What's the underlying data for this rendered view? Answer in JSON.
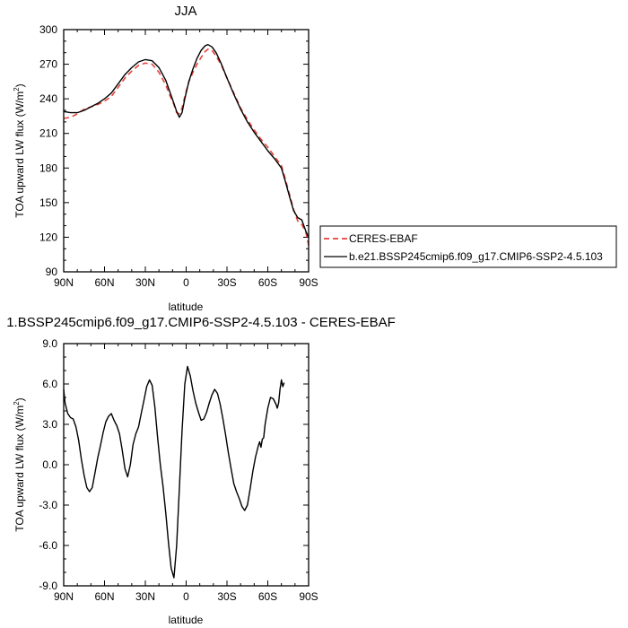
{
  "chart_data": [
    {
      "type": "line",
      "title": "JJA",
      "xlabel": "latitude",
      "ylabel": "TOA upward LW flux (W/m²)",
      "ylabel_main": "TOA upward LW flux (W/m",
      "ylabel_sup": "2",
      "ylabel_close": ")",
      "xlim": [
        90,
        -90
      ],
      "ylim": [
        90,
        300
      ],
      "x_ticks": [
        90,
        60,
        30,
        0,
        -30,
        -60,
        -90
      ],
      "x_tick_labels": [
        "90N",
        "60N",
        "30N",
        "0",
        "30S",
        "60S",
        "90S"
      ],
      "y_ticks": [
        90,
        120,
        150,
        180,
        210,
        240,
        270,
        300
      ],
      "y_tick_labels": [
        "90",
        "120",
        "150",
        "180",
        "210",
        "240",
        "270",
        "300"
      ],
      "legend_position": "right",
      "series": [
        {
          "name": "CERES-EBAF",
          "color": "#e8403a",
          "dash": "dashed",
          "points": [
            [
              90,
              223
            ],
            [
              85,
              224
            ],
            [
              80,
              227
            ],
            [
              75,
              231
            ],
            [
              70,
              233
            ],
            [
              65,
              235
            ],
            [
              60,
              238
            ],
            [
              55,
              242
            ],
            [
              50,
              250
            ],
            [
              45,
              258
            ],
            [
              40,
              264
            ],
            [
              35,
              269
            ],
            [
              30,
              271
            ],
            [
              25,
              270
            ],
            [
              20,
              263
            ],
            [
              15,
              252
            ],
            [
              12,
              243
            ],
            [
              9,
              235
            ],
            [
              7,
              228
            ],
            [
              5,
              227
            ],
            [
              3,
              232
            ],
            [
              1,
              242
            ],
            [
              -2,
              255
            ],
            [
              -5,
              263
            ],
            [
              -8,
              270
            ],
            [
              -11,
              276
            ],
            [
              -14,
              281
            ],
            [
              -16,
              283
            ],
            [
              -19,
              282
            ],
            [
              -22,
              277
            ],
            [
              -26,
              269
            ],
            [
              -30,
              258
            ],
            [
              -35,
              245
            ],
            [
              -40,
              232
            ],
            [
              -45,
              222
            ],
            [
              -50,
              213
            ],
            [
              -55,
              205
            ],
            [
              -60,
              198
            ],
            [
              -65,
              190
            ],
            [
              -70,
              182
            ],
            [
              -73,
              170
            ],
            [
              -76,
              157
            ],
            [
              -79,
              144
            ],
            [
              -82,
              134
            ],
            [
              -85,
              131
            ],
            [
              -88,
              124
            ],
            [
              -90,
              113
            ]
          ]
        },
        {
          "name": "b.e21.BSSP245cmip6.f09_g17.CMIP6-SSP2-4.5.103",
          "color": "#000000",
          "dash": "solid",
          "points": [
            [
              90,
              229
            ],
            [
              85,
              228
            ],
            [
              80,
              228
            ],
            [
              75,
              230
            ],
            [
              70,
              233
            ],
            [
              65,
              236
            ],
            [
              60,
              240
            ],
            [
              55,
              245
            ],
            [
              50,
              253
            ],
            [
              45,
              261
            ],
            [
              40,
              267
            ],
            [
              35,
              272
            ],
            [
              30,
              274
            ],
            [
              25,
              273
            ],
            [
              20,
              267
            ],
            [
              15,
              256
            ],
            [
              12,
              246
            ],
            [
              9,
              236
            ],
            [
              7,
              229
            ],
            [
              5,
              224
            ],
            [
              3,
              228
            ],
            [
              1,
              240
            ],
            [
              -2,
              255
            ],
            [
              -5,
              266
            ],
            [
              -8,
              275
            ],
            [
              -11,
              282
            ],
            [
              -14,
              286
            ],
            [
              -16,
              287
            ],
            [
              -19,
              285
            ],
            [
              -22,
              280
            ],
            [
              -26,
              270
            ],
            [
              -30,
              258
            ],
            [
              -35,
              244
            ],
            [
              -40,
              231
            ],
            [
              -45,
              220
            ],
            [
              -50,
              211
            ],
            [
              -55,
              203
            ],
            [
              -60,
              195
            ],
            [
              -65,
              188
            ],
            [
              -70,
              180
            ],
            [
              -73,
              168
            ],
            [
              -76,
              155
            ],
            [
              -79,
              143
            ],
            [
              -82,
              137
            ],
            [
              -85,
              135
            ],
            [
              -88,
              125
            ],
            [
              -90,
              120
            ]
          ]
        }
      ]
    },
    {
      "type": "line",
      "title": "1.BSSP245cmip6.f09_g17.CMIP6-SSP2-4.5.103 - CERES-EBAF",
      "xlabel": "latitude",
      "ylabel": "TOA upward LW flux (W/m²)",
      "ylabel_main": "TOA upward LW flux (W/m",
      "ylabel_sup": "2",
      "ylabel_close": ")",
      "xlim": [
        90,
        -90
      ],
      "ylim": [
        -9,
        9
      ],
      "x_ticks": [
        90,
        60,
        30,
        0,
        -30,
        -60,
        -90
      ],
      "x_tick_labels": [
        "90N",
        "60N",
        "30N",
        "0",
        "30S",
        "60S",
        "90S"
      ],
      "y_ticks": [
        -9,
        -6,
        -3,
        0,
        3,
        6,
        9
      ],
      "y_tick_labels": [
        "-9.0",
        "-6.0",
        "-3.0",
        "0.0",
        "3.0",
        "6.0",
        "9.0"
      ],
      "series": [
        {
          "color": "#000000",
          "dash": "solid",
          "points": [
            [
              90,
              5.6
            ],
            [
              89,
              4.6
            ],
            [
              87,
              3.8
            ],
            [
              85,
              3.5
            ],
            [
              83,
              3.4
            ],
            [
              81,
              2.8
            ],
            [
              79,
              1.8
            ],
            [
              77,
              0.4
            ],
            [
              75,
              -0.8
            ],
            [
              73,
              -1.7
            ],
            [
              71,
              -2.0
            ],
            [
              69,
              -1.7
            ],
            [
              67,
              -0.6
            ],
            [
              65,
              0.5
            ],
            [
              63,
              1.4
            ],
            [
              61,
              2.4
            ],
            [
              59,
              3.2
            ],
            [
              57,
              3.6
            ],
            [
              55,
              3.8
            ],
            [
              53,
              3.3
            ],
            [
              51,
              2.9
            ],
            [
              49,
              2.3
            ],
            [
              47,
              1.1
            ],
            [
              45,
              -0.3
            ],
            [
              43,
              -0.9
            ],
            [
              41,
              0.0
            ],
            [
              39,
              1.5
            ],
            [
              37,
              2.3
            ],
            [
              35,
              2.8
            ],
            [
              33,
              3.8
            ],
            [
              31,
              4.8
            ],
            [
              29,
              5.8
            ],
            [
              27,
              6.3
            ],
            [
              25,
              5.9
            ],
            [
              23,
              4.3
            ],
            [
              21,
              2.0
            ],
            [
              19,
              0.0
            ],
            [
              17,
              -1.6
            ],
            [
              15,
              -3.6
            ],
            [
              13,
              -5.8
            ],
            [
              11,
              -7.7
            ],
            [
              9,
              -8.4
            ],
            [
              7,
              -6.0
            ],
            [
              5,
              -1.8
            ],
            [
              3,
              2.5
            ],
            [
              1,
              6.0
            ],
            [
              -1,
              7.3
            ],
            [
              -3,
              6.6
            ],
            [
              -5,
              5.5
            ],
            [
              -7,
              4.6
            ],
            [
              -9,
              3.9
            ],
            [
              -11,
              3.3
            ],
            [
              -13,
              3.4
            ],
            [
              -15,
              3.9
            ],
            [
              -17,
              4.6
            ],
            [
              -19,
              5.2
            ],
            [
              -21,
              5.6
            ],
            [
              -23,
              5.3
            ],
            [
              -25,
              4.5
            ],
            [
              -27,
              3.4
            ],
            [
              -29,
              2.2
            ],
            [
              -31,
              0.9
            ],
            [
              -33,
              -0.3
            ],
            [
              -35,
              -1.4
            ],
            [
              -37,
              -2.0
            ],
            [
              -39,
              -2.5
            ],
            [
              -41,
              -3.1
            ],
            [
              -43,
              -3.4
            ],
            [
              -45,
              -3.0
            ],
            [
              -47,
              -1.8
            ],
            [
              -49,
              -0.5
            ],
            [
              -51,
              0.6
            ],
            [
              -53,
              1.4
            ],
            [
              -54,
              1.7
            ],
            [
              -55,
              1.3
            ],
            [
              -56,
              1.9
            ],
            [
              -57,
              2.0
            ],
            [
              -58,
              3.0
            ],
            [
              -60,
              4.2
            ],
            [
              -62,
              5.0
            ],
            [
              -64,
              4.9
            ],
            [
              -66,
              4.5
            ],
            [
              -67,
              4.2
            ],
            [
              -68,
              4.6
            ],
            [
              -69,
              5.6
            ],
            [
              -70,
              6.3
            ],
            [
              -71,
              5.8
            ],
            [
              -72,
              6.1
            ]
          ]
        }
      ]
    }
  ]
}
